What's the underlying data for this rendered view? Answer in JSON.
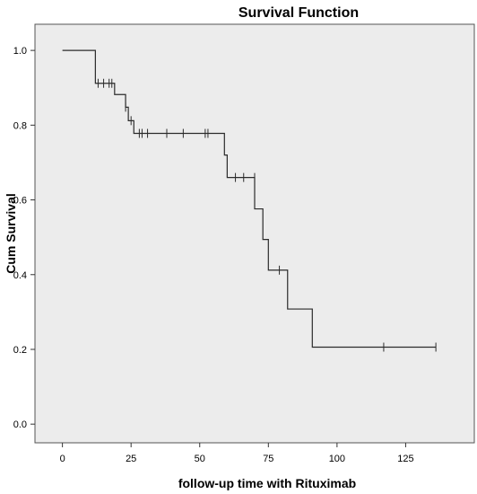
{
  "chart_data": {
    "type": "line",
    "title": "Survival Function",
    "xlabel": "follow-up time with Rituximab",
    "ylabel": "Cum Survival",
    "xlim": [
      -10,
      150
    ],
    "ylim": [
      -0.05,
      1.07
    ],
    "x_ticks": [
      0,
      25,
      50,
      75,
      100,
      125
    ],
    "y_ticks": [
      0.0,
      0.2,
      0.4,
      0.6,
      0.8,
      1.0
    ],
    "x_tick_labels": [
      "0",
      "25",
      "50",
      "75",
      "100",
      "125"
    ],
    "y_tick_labels": [
      "0.0",
      "0.2",
      "0.4",
      "0.6",
      "0.8",
      "1.0"
    ],
    "grid": false,
    "background": "#ececec",
    "line_color": "#2b2b2b",
    "series": [
      {
        "step": [
          [
            0,
            1.0
          ],
          [
            12,
            0.912
          ],
          [
            19,
            0.882
          ],
          [
            23,
            0.848
          ],
          [
            24,
            0.812
          ],
          [
            26,
            0.778
          ],
          [
            59,
            0.72
          ],
          [
            60,
            0.66
          ],
          [
            70,
            0.576
          ],
          [
            73,
            0.494
          ],
          [
            75,
            0.412
          ],
          [
            82,
            0.308
          ],
          [
            91,
            0.206
          ],
          [
            136,
            0.206
          ]
        ],
        "censored": [
          [
            13,
            0.912
          ],
          [
            15,
            0.912
          ],
          [
            17,
            0.912
          ],
          [
            18,
            0.912
          ],
          [
            23,
            0.848
          ],
          [
            25,
            0.812
          ],
          [
            28,
            0.778
          ],
          [
            29,
            0.778
          ],
          [
            31,
            0.778
          ],
          [
            38,
            0.778
          ],
          [
            44,
            0.778
          ],
          [
            52,
            0.778
          ],
          [
            53,
            0.778
          ],
          [
            63,
            0.66
          ],
          [
            66,
            0.66
          ],
          [
            70,
            0.66
          ],
          [
            79,
            0.412
          ],
          [
            117,
            0.206
          ],
          [
            136,
            0.206
          ]
        ]
      }
    ]
  }
}
